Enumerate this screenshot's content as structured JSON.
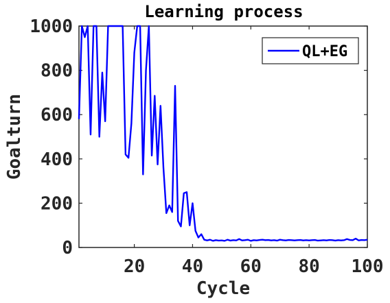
{
  "chart_data": {
    "type": "line",
    "title": "Learning process",
    "xlabel": "Cycle",
    "ylabel": "Goalturn",
    "xlim": [
      1,
      100
    ],
    "ylim": [
      0,
      1000
    ],
    "xticks": [
      20,
      40,
      60,
      80,
      100
    ],
    "yticks": [
      0,
      200,
      400,
      600,
      800,
      1000
    ],
    "grid": false,
    "legend_position": "top-right",
    "series": [
      {
        "name": "QL+EG",
        "color": "#0000ff",
        "x": [
          1,
          2,
          3,
          4,
          5,
          6,
          7,
          8,
          9,
          10,
          11,
          12,
          13,
          14,
          15,
          16,
          17,
          18,
          19,
          20,
          21,
          22,
          23,
          24,
          25,
          26,
          27,
          28,
          29,
          30,
          31,
          32,
          33,
          34,
          35,
          36,
          37,
          38,
          39,
          40,
          41,
          42,
          43,
          44,
          45,
          46,
          47,
          48,
          49,
          50,
          51,
          52,
          53,
          54,
          55,
          56,
          57,
          58,
          59,
          60,
          61,
          62,
          63,
          64,
          65,
          66,
          67,
          68,
          69,
          70,
          71,
          72,
          73,
          74,
          75,
          76,
          77,
          78,
          79,
          80,
          81,
          82,
          83,
          84,
          85,
          86,
          87,
          88,
          89,
          90,
          91,
          92,
          93,
          94,
          95,
          96,
          97,
          98,
          99,
          100
        ],
        "values": [
          580,
          1000,
          950,
          1000,
          510,
          1000,
          1000,
          500,
          790,
          570,
          1000,
          1000,
          1000,
          1000,
          1000,
          1000,
          420,
          405,
          560,
          880,
          1000,
          1000,
          330,
          800,
          1000,
          415,
          685,
          375,
          640,
          360,
          155,
          190,
          160,
          730,
          120,
          95,
          245,
          250,
          100,
          200,
          75,
          45,
          60,
          35,
          32,
          35,
          30,
          33,
          31,
          32,
          30,
          35,
          31,
          33,
          32,
          38,
          32,
          33,
          35,
          30,
          33,
          32,
          34,
          35,
          33,
          34,
          32,
          33,
          31,
          35,
          33,
          32,
          34,
          33,
          32,
          33,
          34,
          32,
          33,
          32,
          33,
          34,
          31,
          32,
          33,
          32,
          34,
          33,
          31,
          33,
          32,
          33,
          38,
          34,
          33,
          40,
          32,
          34,
          33,
          35
        ]
      }
    ]
  }
}
